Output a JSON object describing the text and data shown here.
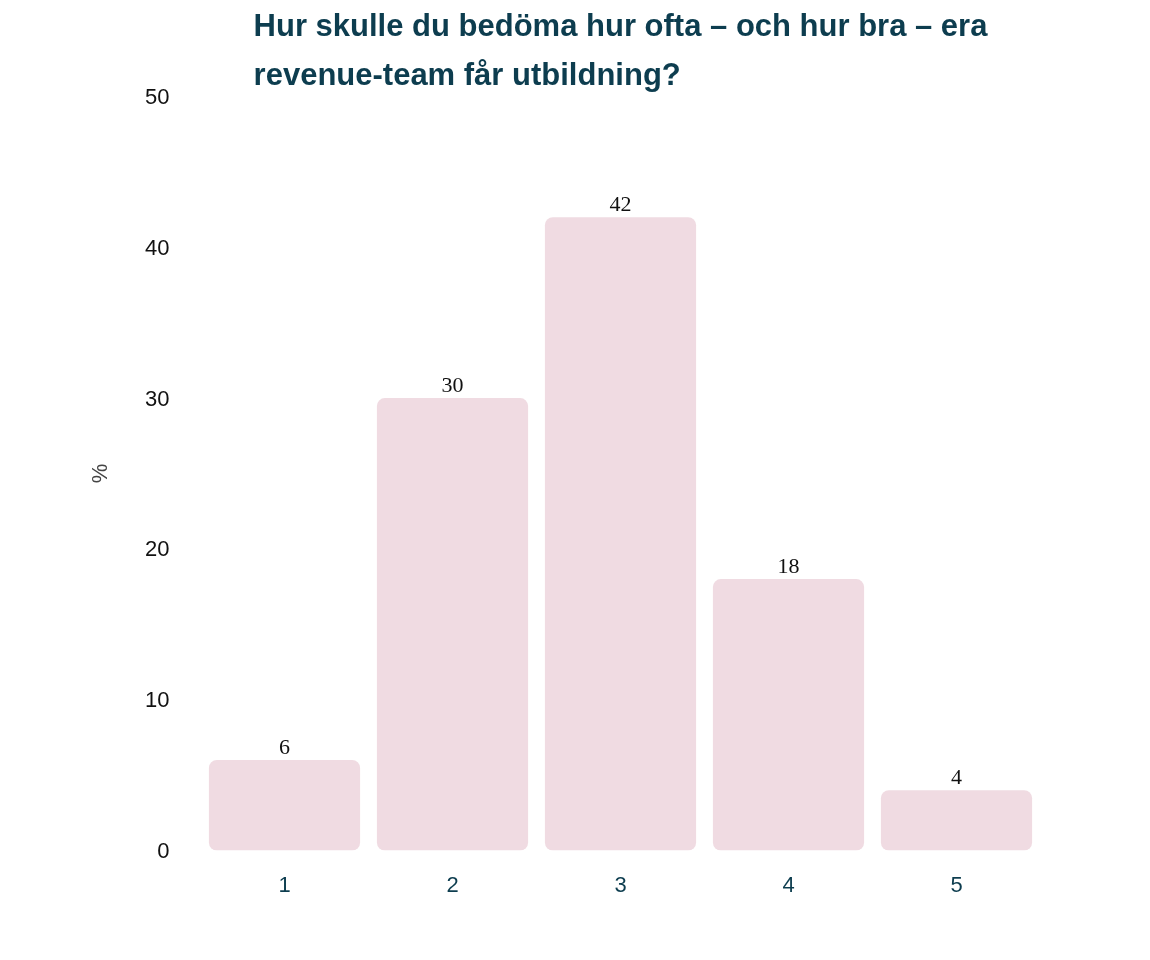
{
  "chart_data": {
    "type": "bar",
    "title": "Hur skulle du bedöma hur ofta – och hur bra – era revenue-team får utbildning?",
    "ylabel": "%",
    "categories": [
      "1",
      "2",
      "3",
      "4",
      "5"
    ],
    "values": [
      6,
      30,
      42,
      18,
      4
    ],
    "color": "#f0dbe2",
    "ylim": [
      0,
      50
    ],
    "yticks": [
      0,
      10,
      20,
      30,
      40,
      50
    ],
    "grid": false,
    "data_labels": true
  }
}
